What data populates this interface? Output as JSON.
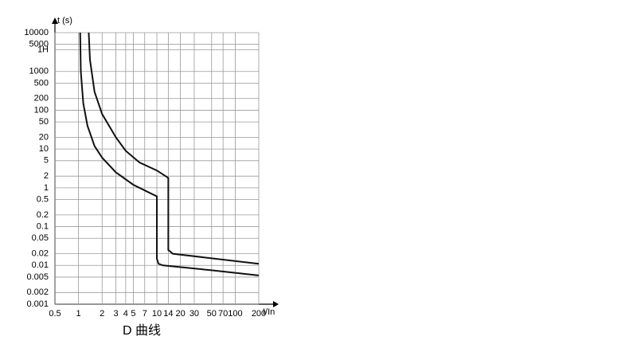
{
  "chart_data": {
    "type": "line",
    "title": "D 曲线",
    "x_label": "I/In",
    "y_label": "t (s)",
    "log_x": true,
    "log_y": true,
    "grid": true,
    "xlim": [
      0.5,
      200
    ],
    "ylim": [
      0.001,
      10000
    ],
    "xticks": [
      0.5,
      1,
      2,
      3,
      4,
      5,
      7,
      10,
      14,
      20,
      30,
      50,
      70,
      100,
      200
    ],
    "yticks": [
      10000,
      5000,
      {
        "value": 3600,
        "label": "1H"
      },
      1000,
      500,
      200,
      100,
      50,
      20,
      10,
      5,
      2,
      1,
      0.5,
      0.2,
      0.1,
      0.05,
      0.02,
      0.01,
      0.005,
      0.002,
      0.001
    ],
    "series": [
      {
        "color": "#111111",
        "x": [
          1.05,
          1.07,
          1.15,
          1.3,
          1.6,
          2,
          3,
          5,
          8,
          10,
          10,
          10.5,
          12,
          50,
          200
        ],
        "values": [
          10000,
          1000,
          150,
          40,
          12,
          6,
          2.5,
          1.2,
          0.75,
          0.6,
          0.015,
          0.011,
          0.01,
          0.0075,
          0.0055
        ]
      },
      {
        "color": "#111111",
        "x": [
          1.35,
          1.4,
          1.6,
          2,
          3,
          4,
          6,
          10,
          14,
          14,
          16,
          200
        ],
        "values": [
          10000,
          2000,
          300,
          80,
          20,
          9,
          4.5,
          2.8,
          1.8,
          0.025,
          0.02,
          0.011
        ]
      }
    ]
  }
}
